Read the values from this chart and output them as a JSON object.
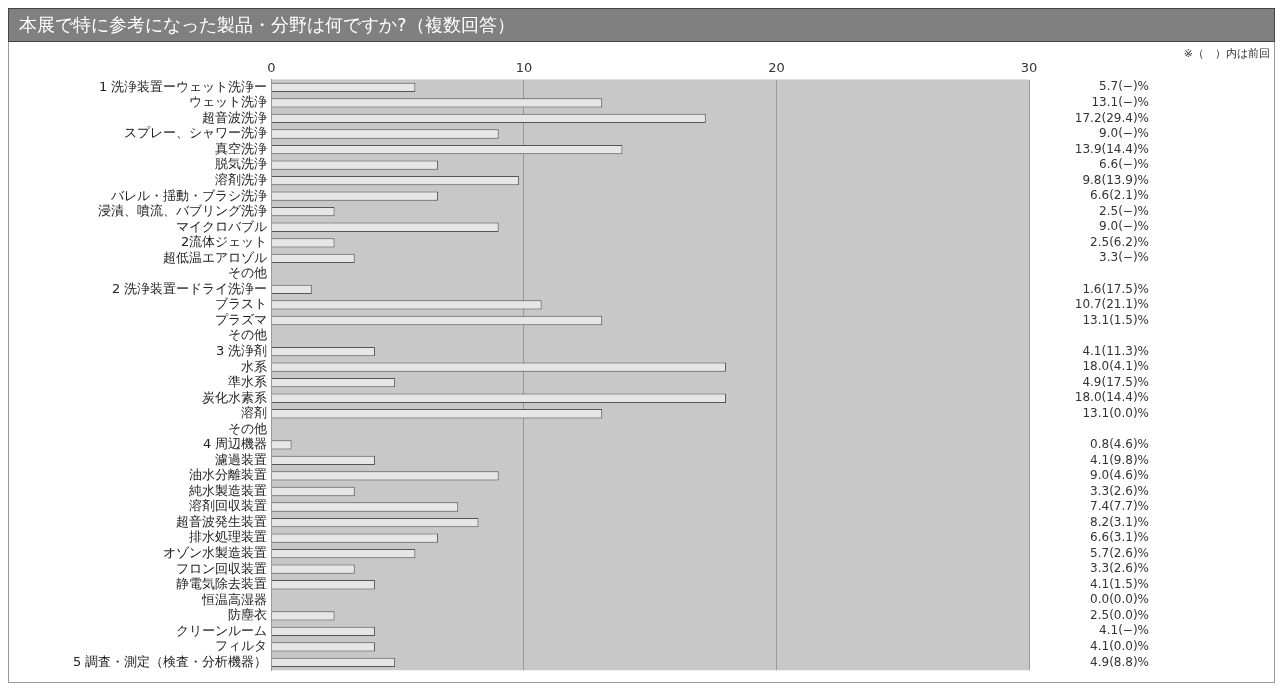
{
  "chart_data": {
    "type": "bar",
    "orientation": "horizontal",
    "title": "本展で特に参考になった製品・分野は何ですか?（複数回答）",
    "annotations": [
      "※（　）内は前回"
    ],
    "categories": [
      "1 洗浄装置ーウェット洗浄ー",
      "ウェット洗浄",
      "超音波洗浄",
      "スプレー、シャワー洗浄",
      "真空洗浄",
      "脱気洗浄",
      "溶剤洗浄",
      "バレル・揺動・ブラシ洗浄",
      "浸漬、噴流、バブリング洗浄",
      "マイクロバブル",
      "2流体ジェット",
      "超低温エアロゾル",
      "その他",
      "2 洗浄装置ードライ洗浄ー",
      "ブラスト",
      "プラズマ",
      "その他",
      "3 洗浄剤",
      "水系",
      "準水系",
      "炭化水素系",
      "溶剤",
      "その他",
      "4 周辺機器",
      "濾過装置",
      "油水分離装置",
      "純水製造装置",
      "溶剤回収装置",
      "超音波発生装置",
      "排水処理装置",
      "オゾン水製造装置",
      "フロン回収装置",
      "静電気除去装置",
      "恒温高湿器",
      "防塵衣",
      "クリーンルーム",
      "フィルタ",
      "5 調査・測定（検査・分析機器）"
    ],
    "values": [
      5.7,
      13.1,
      17.2,
      9.0,
      13.9,
      6.6,
      9.8,
      6.6,
      2.5,
      9.0,
      2.5,
      3.3,
      null,
      1.6,
      10.7,
      13.1,
      null,
      4.1,
      18.0,
      4.9,
      18.0,
      13.1,
      null,
      0.8,
      4.1,
      9.0,
      3.3,
      7.4,
      8.2,
      6.6,
      5.7,
      3.3,
      4.1,
      0.0,
      2.5,
      4.1,
      4.1,
      4.9
    ],
    "value_labels": [
      "5.7(−)%",
      "13.1(−)%",
      "17.2(29.4)%",
      "9.0(−)%",
      "13.9(14.4)%",
      "6.6(−)%",
      "9.8(13.9)%",
      "6.6(2.1)%",
      "2.5(−)%",
      "9.0(−)%",
      "2.5(6.2)%",
      "3.3(−)%",
      null,
      "1.6(17.5)%",
      "10.7(21.1)%",
      "13.1(1.5)%",
      null,
      "4.1(11.3)%",
      "18.0(4.1)%",
      "4.9(17.5)%",
      "18.0(14.4)%",
      "13.1(0.0)%",
      null,
      "0.8(4.6)%",
      "4.1(9.8)%",
      "9.0(4.6)%",
      "3.3(2.6)%",
      "7.4(7.7)%",
      "8.2(3.1)%",
      "6.6(3.1)%",
      "5.7(2.6)%",
      "3.3(2.6)%",
      "4.1(1.5)%",
      "0.0(0.0)%",
      "2.5(0.0)%",
      "4.1(−)%",
      "4.1(0.0)%",
      "4.9(8.8)%"
    ],
    "color": "#e6e6e6",
    "xlim": [
      0,
      30
    ],
    "xticks": [
      0,
      10,
      20,
      30
    ],
    "grid": "x",
    "legend": false
  }
}
